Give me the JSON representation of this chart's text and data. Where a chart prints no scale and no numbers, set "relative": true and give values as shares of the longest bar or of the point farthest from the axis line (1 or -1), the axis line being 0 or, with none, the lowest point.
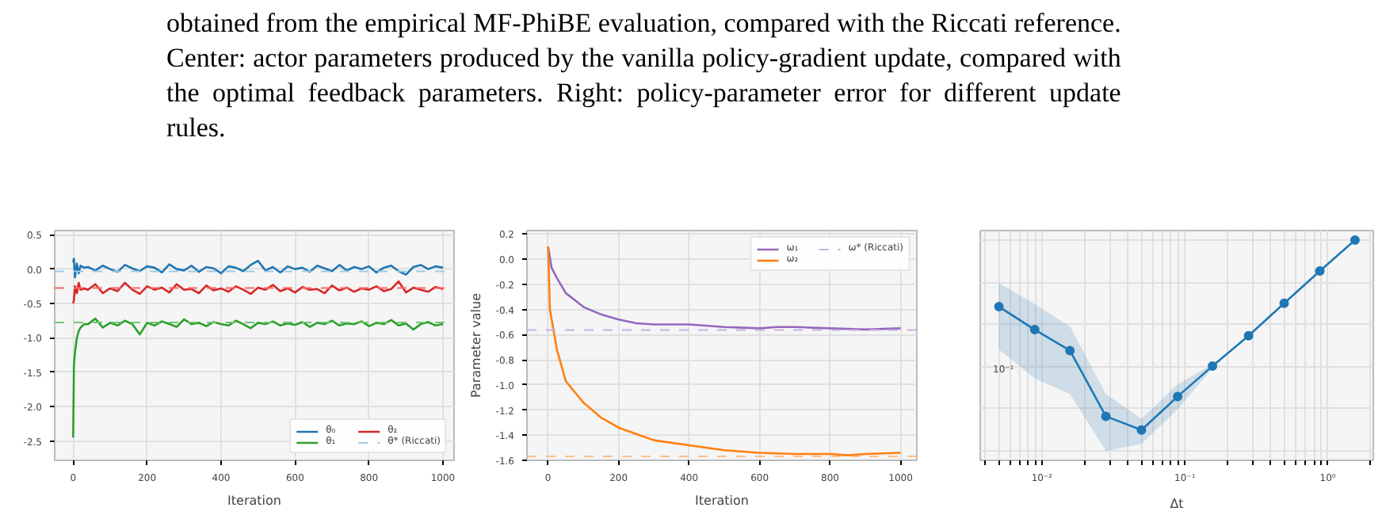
{
  "chart_data": [
    {
      "type": "other",
      "annotations": [
        "obtained from the empirical MF-PhiBE evaluation, compared with the Riccati reference.",
        "Center: actor parameters produced by the vanilla policy-gradient update, compared with",
        "the optimal feedback parameters. Right: policy-parameter error for different update",
        "rules."
      ]
    },
    {
      "type": "line",
      "xlabel": "Iteration",
      "xlim": [
        -50,
        1030
      ],
      "ylim": [
        -2.78,
        0.56
      ],
      "xticks": [
        0,
        200,
        400,
        600,
        800,
        1000
      ],
      "yticks": [
        0.5,
        {
          "value": 0,
          "label": "0.0"
        },
        -0.5,
        {
          "value": -1,
          "label": "-1.0"
        },
        -1.5,
        {
          "value": -2,
          "label": "-2.0"
        },
        -2.5
      ],
      "grid": true,
      "legend": "bottom right",
      "line_style": "solid",
      "x": [
        0,
        2,
        5,
        10,
        15,
        20,
        30,
        40,
        60,
        80,
        100,
        120,
        140,
        160,
        180,
        200,
        220,
        240,
        260,
        280,
        300,
        320,
        340,
        360,
        380,
        400,
        420,
        440,
        460,
        480,
        500,
        520,
        540,
        560,
        580,
        600,
        620,
        640,
        660,
        680,
        700,
        720,
        740,
        760,
        780,
        800,
        820,
        840,
        860,
        880,
        900,
        920,
        940,
        960,
        980,
        1000
      ],
      "series": [
        {
          "name": "θ₀",
          "color": "#1f77b4",
          "values": [
            0.1,
            0.15,
            -0.12,
            0.08,
            -0.06,
            0.05,
            0.02,
            0.03,
            -0.02,
            0.05,
            0.0,
            -0.04,
            0.06,
            0.01,
            -0.03,
            0.04,
            0.02,
            -0.05,
            0.07,
            0.0,
            -0.02,
            0.05,
            -0.04,
            0.03,
            0.01,
            -0.06,
            0.04,
            0.02,
            -0.03,
            0.06,
            0.12,
            -0.02,
            0.03,
            -0.05,
            0.04,
            0.0,
            0.02,
            -0.04,
            0.05,
            0.01,
            -0.03,
            0.06,
            -0.02,
            0.03,
            0.0,
            0.04,
            -0.05,
            0.02,
            0.05,
            -0.03,
            -0.08,
            0.03,
            0.06,
            0.0,
            0.04,
            0.02
          ]
        },
        {
          "name": "θ₁",
          "color": "#2ca02c",
          "values": [
            -2.45,
            -1.4,
            -1.2,
            -1.0,
            -0.9,
            -0.85,
            -0.8,
            -0.8,
            -0.72,
            -0.85,
            -0.78,
            -0.82,
            -0.75,
            -0.8,
            -0.95,
            -0.78,
            -0.82,
            -0.76,
            -0.8,
            -0.84,
            -0.73,
            -0.8,
            -0.78,
            -0.83,
            -0.77,
            -0.8,
            -0.82,
            -0.75,
            -0.8,
            -0.86,
            -0.78,
            -0.8,
            -0.76,
            -0.82,
            -0.79,
            -0.81,
            -0.77,
            -0.84,
            -0.78,
            -0.8,
            -0.75,
            -0.82,
            -0.79,
            -0.8,
            -0.76,
            -0.83,
            -0.78,
            -0.8,
            -0.74,
            -0.82,
            -0.79,
            -0.88,
            -0.8,
            -0.77,
            -0.82,
            -0.8
          ]
        },
        {
          "name": "θ₂",
          "color": "#d62728",
          "values": [
            -0.5,
            -0.45,
            -0.25,
            -0.35,
            -0.2,
            -0.3,
            -0.28,
            -0.3,
            -0.22,
            -0.35,
            -0.28,
            -0.32,
            -0.2,
            -0.3,
            -0.36,
            -0.25,
            -0.3,
            -0.27,
            -0.34,
            -0.22,
            -0.3,
            -0.29,
            -0.35,
            -0.24,
            -0.31,
            -0.28,
            -0.33,
            -0.25,
            -0.3,
            -0.36,
            -0.27,
            -0.3,
            -0.23,
            -0.32,
            -0.28,
            -0.34,
            -0.26,
            -0.3,
            -0.29,
            -0.35,
            -0.24,
            -0.31,
            -0.27,
            -0.33,
            -0.28,
            -0.3,
            -0.25,
            -0.32,
            -0.29,
            -0.18,
            -0.34,
            -0.27,
            -0.3,
            -0.33,
            -0.26,
            -0.29
          ]
        }
      ],
      "ref_lines": [
        {
          "axis": "y",
          "value": -0.034,
          "color": "#9ecae1",
          "line_style": "dashed",
          "label": "θ* (Riccati)"
        },
        {
          "axis": "y",
          "value": -0.775,
          "color": "#74c476",
          "line_style": "dashed"
        },
        {
          "axis": "y",
          "value": -0.276,
          "color": "#fb6a6a",
          "line_style": "dashed"
        }
      ]
    },
    {
      "type": "line",
      "xlabel": "Iteration",
      "ylabel": "Parameter value",
      "xlim": [
        -60,
        1046
      ],
      "ylim": [
        -1.6,
        0.227
      ],
      "xticks": [
        0,
        200,
        400,
        600,
        800,
        1000
      ],
      "yticks": [
        0.2,
        {
          "value": 0,
          "label": "0.0"
        },
        -0.2,
        -0.4,
        -0.6,
        -0.8,
        {
          "value": -1,
          "label": "-1.0"
        },
        -1.2,
        -1.4,
        -1.6
      ],
      "grid": true,
      "legend": "top right",
      "line_style": "solid",
      "series": [
        {
          "name": "ω₁",
          "color": "#9467bd",
          "x": [
            0,
            10,
            25,
            50,
            100,
            150,
            200,
            250,
            300,
            400,
            500,
            600,
            650,
            700,
            800,
            900,
            1000
          ],
          "values": [
            0.1,
            -0.07,
            -0.15,
            -0.27,
            -0.38,
            -0.44,
            -0.48,
            -0.51,
            -0.52,
            -0.52,
            -0.54,
            -0.55,
            -0.54,
            -0.54,
            -0.55,
            -0.56,
            -0.55
          ]
        },
        {
          "name": "ω₂",
          "color": "#ff7f0e",
          "x": [
            0,
            5,
            25,
            50,
            100,
            150,
            200,
            250,
            300,
            400,
            500,
            600,
            700,
            800,
            850,
            900,
            1000
          ],
          "values": [
            0.1,
            -0.4,
            -0.72,
            -0.97,
            -1.14,
            -1.26,
            -1.34,
            -1.39,
            -1.44,
            -1.48,
            -1.52,
            -1.54,
            -1.55,
            -1.55,
            -1.56,
            -1.55,
            -1.54
          ]
        }
      ],
      "ref_lines": [
        {
          "axis": "y",
          "value": -0.564,
          "color": "#c5b0e0",
          "line_style": "dashed",
          "label": "ω* (Riccati)"
        },
        {
          "axis": "y",
          "value": -1.568,
          "color": "#ffbf86",
          "line_style": "dashed"
        }
      ]
    },
    {
      "type": "line",
      "xlabel": "Δt",
      "log": "x",
      "relative": true,
      "annotations": [
        "10⁻¹"
      ],
      "xlim": [
        0.0037,
        2.08
      ],
      "grid": true,
      "marker": "circle",
      "line_style": "solid",
      "xticks": [
        {
          "value": 0.004,
          "label": null
        },
        {
          "value": 0.005,
          "label": null
        },
        {
          "value": 0.006,
          "label": null
        },
        {
          "value": 0.007,
          "label": null
        },
        {
          "value": 0.008,
          "label": null
        },
        {
          "value": 0.009,
          "label": null
        },
        {
          "value": 0.01,
          "label": "10⁻²"
        },
        {
          "value": 0.02,
          "label": null
        },
        {
          "value": 0.03,
          "label": null
        },
        {
          "value": 0.04,
          "label": null
        },
        {
          "value": 0.05,
          "label": null
        },
        {
          "value": 0.06,
          "label": null
        },
        {
          "value": 0.07,
          "label": null
        },
        {
          "value": 0.08,
          "label": null
        },
        {
          "value": 0.09,
          "label": null
        },
        {
          "value": 0.1,
          "label": "10⁻¹"
        },
        {
          "value": 0.2,
          "label": null
        },
        {
          "value": 0.3,
          "label": null
        },
        {
          "value": 0.4,
          "label": null
        },
        {
          "value": 0.5,
          "label": null
        },
        {
          "value": 0.6,
          "label": null
        },
        {
          "value": 0.7,
          "label": null
        },
        {
          "value": 0.8,
          "label": null
        },
        {
          "value": 0.9,
          "label": null
        },
        {
          "value": 1,
          "label": "10⁰"
        },
        {
          "value": 2,
          "label": null
        }
      ],
      "series": [
        {
          "color": "#1f77b4",
          "x": [
            0.005,
            0.0089,
            0.0157,
            0.028,
            0.0497,
            0.089,
            0.156,
            0.279,
            0.495,
            0.88,
            1.55
          ],
          "values": [
            0.684,
            0.575,
            0.476,
            0.164,
            0.099,
            0.258,
            0.402,
            0.546,
            0.7,
            0.853,
            1
          ],
          "lower": [
            0.48,
            0.344,
            0.27,
            0,
            0.033,
            0.197,
            0.393,
            null,
            null,
            null,
            null
          ],
          "upper": [
            0.796,
            0.696,
            0.59,
            0.27,
            0.152,
            0.316,
            0.411,
            null,
            null,
            null,
            null
          ]
        }
      ]
    }
  ]
}
